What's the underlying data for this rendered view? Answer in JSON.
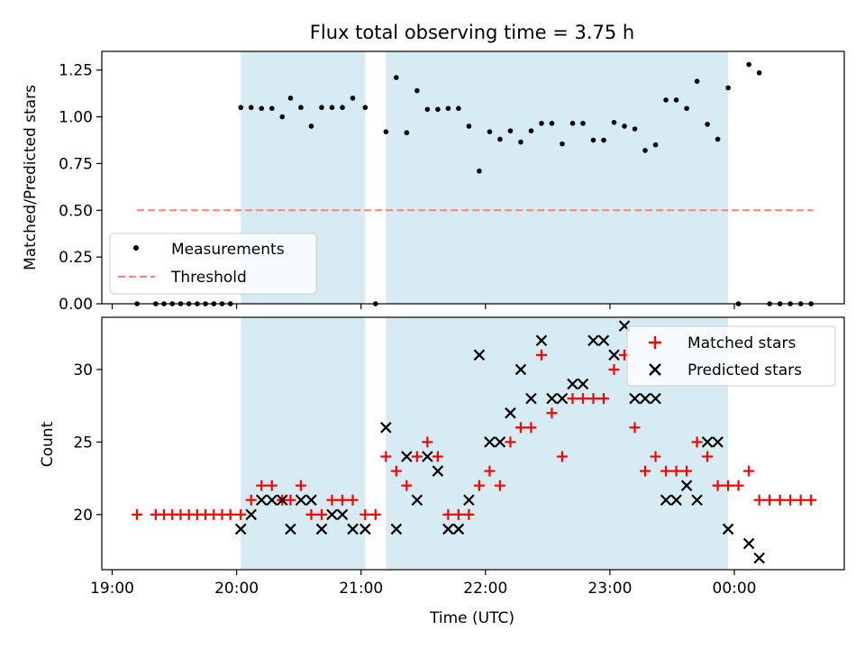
{
  "title": "Flux total observing time = 3.75 h",
  "x_axis_label": "Time (UTC)",
  "x_tick_labels": [
    "19:00",
    "20:00",
    "21:00",
    "22:00",
    "23:00",
    "00:00"
  ],
  "colors": {
    "shade": "#add8e6",
    "threshold": "#ff7f7f",
    "matched": "#ff0000",
    "predicted": "#000000",
    "measurement": "#000000"
  },
  "chart_data": [
    {
      "type": "scatter",
      "ylabel": "Matched/Predicted stars",
      "xrange": [
        "18:55",
        "00:53"
      ],
      "ylim": [
        0,
        1.35
      ],
      "y_ticks": [
        "0.00",
        "0.25",
        "0.50",
        "0.75",
        "1.00",
        "1.25"
      ],
      "shaded_intervals": [
        [
          "20:02",
          "21:02"
        ],
        [
          "21:12",
          "23:57"
        ]
      ],
      "legend_position": "lower-left",
      "threshold": {
        "name": "Threshold",
        "value": 0.5,
        "x_start": "19:12",
        "x_end": "00:38"
      },
      "series": [
        {
          "name": "Measurements",
          "points": [
            [
              "19:12",
              0
            ],
            [
              "19:21",
              0
            ],
            [
              "19:25",
              0
            ],
            [
              "19:29",
              0
            ],
            [
              "19:33",
              0
            ],
            [
              "19:37",
              0
            ],
            [
              "19:41",
              0
            ],
            [
              "19:45",
              0
            ],
            [
              "19:49",
              0
            ],
            [
              "19:53",
              0
            ],
            [
              "19:57",
              0
            ],
            [
              "20:02",
              1.05
            ],
            [
              "20:07",
              1.05
            ],
            [
              "20:12",
              1.045
            ],
            [
              "20:17",
              1.045
            ],
            [
              "20:22",
              1.0
            ],
            [
              "20:26",
              1.1
            ],
            [
              "20:31",
              1.05
            ],
            [
              "20:36",
              0.95
            ],
            [
              "20:41",
              1.05
            ],
            [
              "20:46",
              1.05
            ],
            [
              "20:51",
              1.05
            ],
            [
              "20:56",
              1.1
            ],
            [
              "21:02",
              1.05
            ],
            [
              "21:07",
              0
            ],
            [
              "21:12",
              0.92
            ],
            [
              "21:17",
              1.21
            ],
            [
              "21:22",
              0.915
            ],
            [
              "21:27",
              1.14
            ],
            [
              "21:32",
              1.04
            ],
            [
              "21:37",
              1.04
            ],
            [
              "21:42",
              1.045
            ],
            [
              "21:47",
              1.045
            ],
            [
              "21:52",
              0.95
            ],
            [
              "21:57",
              0.71
            ],
            [
              "22:02",
              0.92
            ],
            [
              "22:07",
              0.88
            ],
            [
              "22:12",
              0.925
            ],
            [
              "22:17",
              0.865
            ],
            [
              "22:22",
              0.925
            ],
            [
              "22:27",
              0.965
            ],
            [
              "22:32",
              0.965
            ],
            [
              "22:37",
              0.855
            ],
            [
              "22:42",
              0.965
            ],
            [
              "22:47",
              0.965
            ],
            [
              "22:52",
              0.875
            ],
            [
              "22:57",
              0.875
            ],
            [
              "23:02",
              0.97
            ],
            [
              "23:07",
              0.95
            ],
            [
              "23:12",
              0.935
            ],
            [
              "23:17",
              0.82
            ],
            [
              "23:22",
              0.85
            ],
            [
              "23:27",
              1.09
            ],
            [
              "23:32",
              1.09
            ],
            [
              "23:37",
              1.045
            ],
            [
              "23:42",
              1.19
            ],
            [
              "23:47",
              0.96
            ],
            [
              "23:52",
              0.88
            ],
            [
              "23:57",
              1.155
            ],
            [
              "00:02",
              0
            ],
            [
              "00:07",
              1.28
            ],
            [
              "00:12",
              1.235
            ],
            [
              "00:17",
              0
            ],
            [
              "00:22",
              0
            ],
            [
              "00:27",
              0
            ],
            [
              "00:32",
              0
            ],
            [
              "00:37",
              0
            ]
          ]
        }
      ]
    },
    {
      "type": "scatter",
      "ylabel": "Count",
      "xlabel": "Time (UTC)",
      "xrange": [
        "18:55",
        "00:53"
      ],
      "ylim": [
        16.2,
        33.6
      ],
      "y_ticks": [
        "20",
        "25",
        "30"
      ],
      "shaded_intervals": [
        [
          "20:02",
          "21:02"
        ],
        [
          "21:12",
          "23:57"
        ]
      ],
      "legend_position": "top-right",
      "series": [
        {
          "name": "Matched stars",
          "marker": "+",
          "points": [
            [
              "19:12",
              20
            ],
            [
              "19:21",
              20
            ],
            [
              "19:25",
              20
            ],
            [
              "19:29",
              20
            ],
            [
              "19:33",
              20
            ],
            [
              "19:37",
              20
            ],
            [
              "19:41",
              20
            ],
            [
              "19:45",
              20
            ],
            [
              "19:49",
              20
            ],
            [
              "19:53",
              20
            ],
            [
              "19:57",
              20
            ],
            [
              "20:02",
              20
            ],
            [
              "20:07",
              21
            ],
            [
              "20:12",
              22
            ],
            [
              "20:17",
              22
            ],
            [
              "20:22",
              21
            ],
            [
              "20:26",
              21
            ],
            [
              "20:31",
              22
            ],
            [
              "20:36",
              20
            ],
            [
              "20:41",
              20
            ],
            [
              "20:46",
              21
            ],
            [
              "20:51",
              21
            ],
            [
              "20:56",
              21
            ],
            [
              "21:02",
              20
            ],
            [
              "21:07",
              20
            ],
            [
              "21:12",
              24
            ],
            [
              "21:17",
              23
            ],
            [
              "21:22",
              22
            ],
            [
              "21:27",
              24
            ],
            [
              "21:32",
              25
            ],
            [
              "21:37",
              24
            ],
            [
              "21:42",
              20
            ],
            [
              "21:47",
              20
            ],
            [
              "21:52",
              20
            ],
            [
              "21:57",
              22
            ],
            [
              "22:02",
              23
            ],
            [
              "22:07",
              22
            ],
            [
              "22:12",
              25
            ],
            [
              "22:17",
              26
            ],
            [
              "22:22",
              26
            ],
            [
              "22:27",
              31
            ],
            [
              "22:32",
              27
            ],
            [
              "22:37",
              24
            ],
            [
              "22:42",
              28
            ],
            [
              "22:47",
              28
            ],
            [
              "22:52",
              28
            ],
            [
              "22:57",
              28
            ],
            [
              "23:02",
              30
            ],
            [
              "23:07",
              31
            ],
            [
              "23:12",
              26
            ],
            [
              "23:17",
              23
            ],
            [
              "23:22",
              24
            ],
            [
              "23:27",
              23
            ],
            [
              "23:32",
              23
            ],
            [
              "23:37",
              23
            ],
            [
              "23:42",
              25
            ],
            [
              "23:47",
              24
            ],
            [
              "23:52",
              22
            ],
            [
              "23:57",
              22
            ],
            [
              "00:02",
              22
            ],
            [
              "00:07",
              23
            ],
            [
              "00:12",
              21
            ],
            [
              "00:17",
              21
            ],
            [
              "00:22",
              21
            ],
            [
              "00:27",
              21
            ],
            [
              "00:32",
              21
            ],
            [
              "00:37",
              21
            ]
          ]
        },
        {
          "name": "Predicted stars",
          "marker": "x",
          "points": [
            [
              "20:02",
              19
            ],
            [
              "20:07",
              20
            ],
            [
              "20:12",
              21
            ],
            [
              "20:17",
              21
            ],
            [
              "20:22",
              21
            ],
            [
              "20:26",
              19
            ],
            [
              "20:31",
              21
            ],
            [
              "20:36",
              21
            ],
            [
              "20:41",
              19
            ],
            [
              "20:46",
              20
            ],
            [
              "20:51",
              20
            ],
            [
              "20:56",
              19
            ],
            [
              "21:02",
              19
            ],
            [
              "21:12",
              26
            ],
            [
              "21:17",
              19
            ],
            [
              "21:22",
              24
            ],
            [
              "21:27",
              21
            ],
            [
              "21:32",
              24
            ],
            [
              "21:37",
              23
            ],
            [
              "21:42",
              19
            ],
            [
              "21:47",
              19
            ],
            [
              "21:52",
              21
            ],
            [
              "21:57",
              31
            ],
            [
              "22:02",
              25
            ],
            [
              "22:07",
              25
            ],
            [
              "22:12",
              27
            ],
            [
              "22:17",
              30
            ],
            [
              "22:22",
              28
            ],
            [
              "22:27",
              32
            ],
            [
              "22:32",
              28
            ],
            [
              "22:37",
              28
            ],
            [
              "22:42",
              29
            ],
            [
              "22:47",
              29
            ],
            [
              "22:52",
              32
            ],
            [
              "22:57",
              32
            ],
            [
              "23:02",
              31
            ],
            [
              "23:07",
              33
            ],
            [
              "23:12",
              28
            ],
            [
              "23:17",
              28
            ],
            [
              "23:22",
              28
            ],
            [
              "23:27",
              21
            ],
            [
              "23:32",
              21
            ],
            [
              "23:37",
              22
            ],
            [
              "23:42",
              21
            ],
            [
              "23:47",
              25
            ],
            [
              "23:52",
              25
            ],
            [
              "23:57",
              19
            ],
            [
              "00:07",
              18
            ],
            [
              "00:12",
              17
            ]
          ]
        }
      ]
    }
  ]
}
